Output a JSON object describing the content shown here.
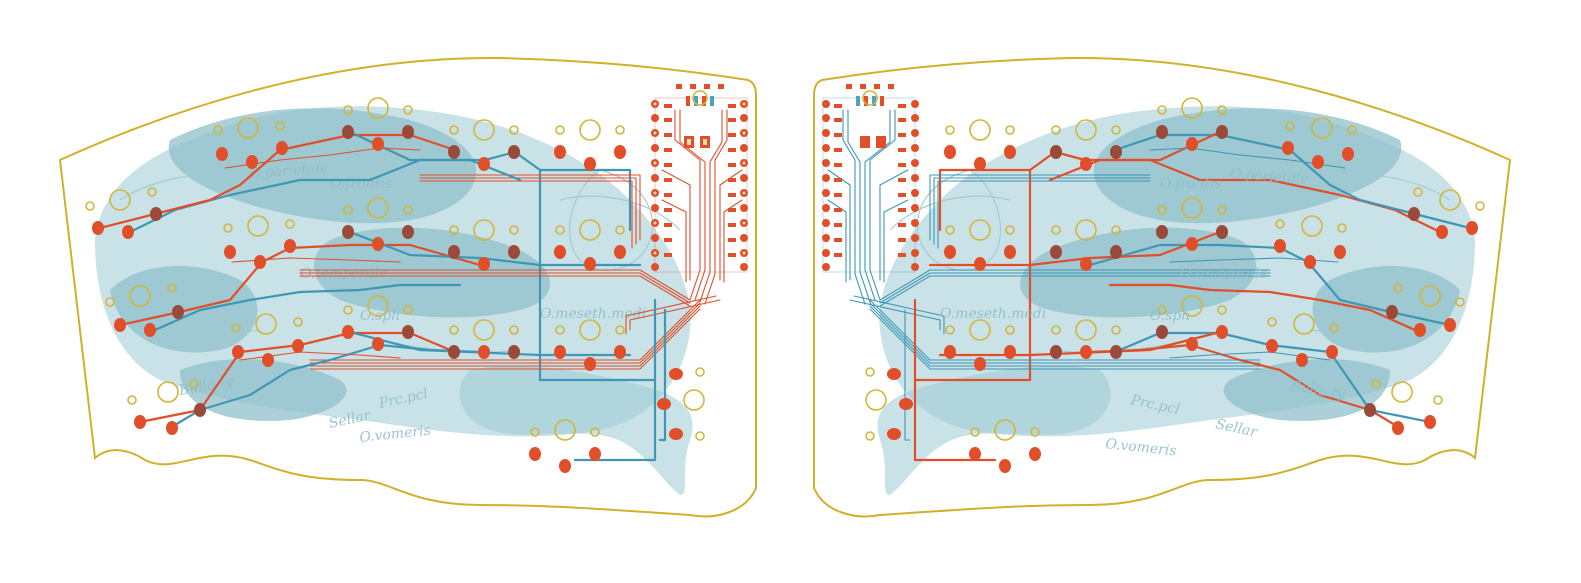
{
  "board": {
    "left_labels": [
      "O.parietale",
      "O.frontis",
      "O.temporale",
      "O.meseth.medi",
      "O.sph",
      "Sellar",
      "Prc.pcl",
      "Bulla ty",
      "O.vomeris"
    ],
    "right_labels": [
      "O.parietale",
      "O.frontis",
      "O.temporale",
      "O.meseth.medi",
      "O.sph",
      "Sellar",
      "Prc.pcl",
      "Bulla ty",
      "O.vomeris"
    ]
  },
  "colors": {
    "outline": "#cfb12b",
    "skull_fill": "#9ccad4",
    "trace_blue": "#3f97b4",
    "trace_red": "#e04f2a",
    "pad_red": "#e04f2a",
    "pad_brown": "#9b4a39",
    "background": "#ffffff"
  }
}
